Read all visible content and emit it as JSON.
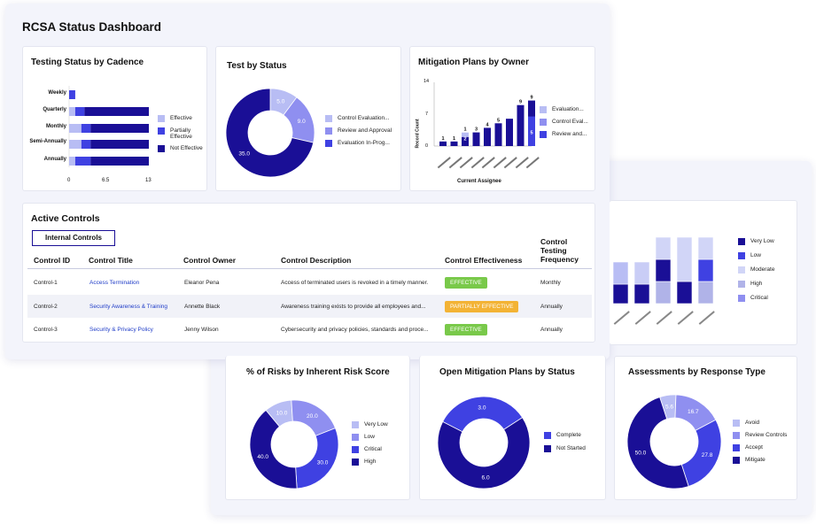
{
  "colors": {
    "navy": "#1a0f96",
    "blue": "#3f41e2",
    "periwinkle": "#8f8ff0",
    "light": "#b8bdf4",
    "green": "#79c94a",
    "orange": "#f3b335"
  },
  "dashboard_title": "RCSA Status Dashboard",
  "testing_status": {
    "title": "Testing Status by Cadence",
    "categories": [
      "Weekly",
      "Quarterly",
      "Monthly",
      "Semi-Annually",
      "Annually"
    ],
    "ticks": [
      "0",
      "6.5",
      "13"
    ],
    "legend": [
      "Effective",
      "Partially Effective",
      "Not Effective"
    ],
    "chart_data": {
      "type": "bar",
      "categories": [
        "Weekly",
        "Quarterly",
        "Monthly",
        "Semi-Annually",
        "Annually"
      ],
      "series": [
        {
          "name": "Effective",
          "values": [
            0,
            1,
            2,
            2,
            1
          ]
        },
        {
          "name": "Partially Effective",
          "values": [
            1,
            1.5,
            1.5,
            1.5,
            2.5
          ]
        },
        {
          "name": "Not Effective",
          "values": [
            0,
            10.5,
            9.5,
            9.5,
            9.5
          ]
        }
      ],
      "xlim": [
        0,
        13
      ]
    }
  },
  "test_by_status": {
    "title": "Test by Status",
    "legend": [
      "Control Evaluation...",
      "Review and Approval",
      "Evaluation In-Prog..."
    ],
    "chart_data": {
      "type": "pie",
      "labels": [
        "Control Evaluation...",
        "Review and Approval",
        "Evaluation In-Prog..."
      ],
      "values": [
        5.0,
        9.0,
        35.0
      ],
      "value_labels": [
        "5.0",
        "9.0",
        "35.0"
      ]
    }
  },
  "mitigation_owner": {
    "title": "Mitigation Plans by Owner",
    "ylabel": "Record Count",
    "xlabel": "Current Assignee",
    "yticks": [
      "14",
      "7",
      "0"
    ],
    "legend": [
      "Evaluation...",
      "Control Eval...",
      "Review and..."
    ],
    "chart_data": {
      "type": "bar",
      "categories": [
        "a",
        "b",
        "c",
        "d",
        "e",
        "f",
        "g",
        "h",
        "i"
      ],
      "totals": [
        1,
        1,
        1,
        3,
        4,
        5,
        6,
        9,
        9
      ],
      "top_labels": [
        "1",
        "1",
        "1",
        "3",
        "4",
        "5",
        "9",
        "9"
      ],
      "inner_labels": [
        "2",
        "5"
      ],
      "ylim": [
        0,
        14
      ]
    }
  },
  "active_controls": {
    "title": "Active Controls",
    "tab": "Internal Controls",
    "columns": [
      "Control ID",
      "Control Title",
      "Control Owner",
      "Control Description",
      "Control Effectiveness",
      "Control Testing Frequency"
    ],
    "rows": [
      {
        "id": "Control-1",
        "title": "Access Termination",
        "owner": "Eleanor Pena",
        "desc": "Access of terminated users is revoked in a timely manner.",
        "eff": "EFFECTIVE",
        "freq": "Monthly"
      },
      {
        "id": "Control-2",
        "title": "Security Awareness & Training",
        "owner": "Annette Black",
        "desc": "Awareness training exists to provide all employees and...",
        "eff": "PARTIALLY EFFECTIVE",
        "freq": "Annually"
      },
      {
        "id": "Control-3",
        "title": "Security & Privacy Policy",
        "owner": "Jenny Wilson",
        "desc": "Cybersecurity and privacy policies, standards and proce...",
        "eff": "EFFECTIVE",
        "freq": "Annually"
      }
    ]
  },
  "risk_columns": {
    "legend": [
      "Very Low",
      "Low",
      "Moderate",
      "High",
      "Critical"
    ],
    "chart_data": {
      "type": "bar",
      "categories": [
        "a",
        "b",
        "c",
        "d",
        "e"
      ],
      "series": [
        {
          "name": "Very Low",
          "values": [
            1,
            1,
            1,
            2,
            1
          ]
        },
        {
          "name": "Low",
          "values": [
            1,
            1,
            1,
            0,
            1
          ]
        },
        {
          "name": "Moderate",
          "values": [
            1,
            1,
            1,
            2,
            1
          ]
        },
        {
          "name": "High",
          "values": [
            0,
            0,
            1,
            0,
            1
          ]
        },
        {
          "name": "Critical",
          "values": [
            0,
            0,
            0,
            0,
            0
          ]
        }
      ]
    }
  },
  "risk_score": {
    "title": "% of Risks by Inherent Risk Score",
    "legend": [
      "Very Low",
      "Low",
      "Critical",
      "High"
    ],
    "chart_data": {
      "type": "pie",
      "labels": [
        "Very Low",
        "Low",
        "Critical",
        "High"
      ],
      "values": [
        10,
        20,
        30,
        40
      ],
      "value_labels": [
        "10.0",
        "20.0",
        "30.0",
        "40.0"
      ]
    }
  },
  "open_mitigation": {
    "title": "Open Mitigation Plans by Status",
    "legend": [
      "Complete",
      "Not Started"
    ],
    "chart_data": {
      "type": "pie",
      "labels": [
        "Complete",
        "Not Started"
      ],
      "values": [
        3,
        6
      ],
      "value_labels": [
        "3.0",
        "6.0"
      ]
    }
  },
  "assessments": {
    "title": "Assessments by Response Type",
    "legend": [
      "Avoid",
      "Review Controls",
      "Accept",
      "Mitigate"
    ],
    "chart_data": {
      "type": "pie",
      "labels": [
        "Avoid",
        "Review Controls",
        "Accept",
        "Mitigate"
      ],
      "values": [
        5.6,
        16.7,
        27.8,
        50.0
      ],
      "value_labels": [
        "5.6",
        "16.7",
        "27.8",
        "50.0"
      ]
    }
  }
}
